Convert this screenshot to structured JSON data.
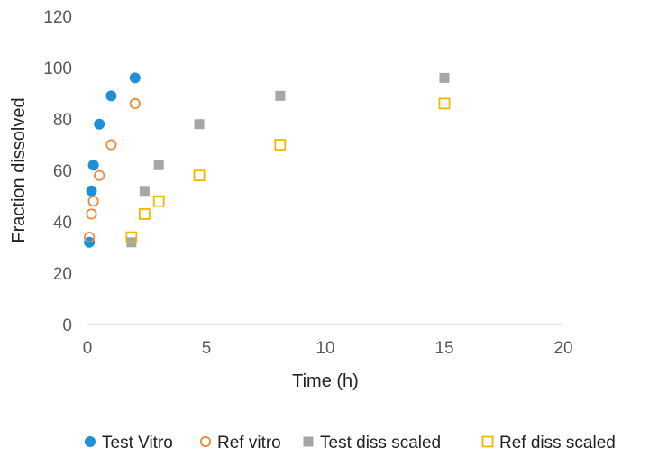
{
  "chart_data": {
    "type": "scatter",
    "title": "",
    "xlabel": "Time  (h)",
    "ylabel": "Fraction dissolved",
    "xlim": [
      0,
      20
    ],
    "ylim": [
      0,
      120
    ],
    "xticks": [
      0,
      5,
      10,
      15,
      20
    ],
    "yticks": [
      0,
      20,
      40,
      60,
      80,
      100,
      120
    ],
    "grid": false,
    "legend_position": "bottom",
    "series": [
      {
        "name": "Test Vitro",
        "marker": "filled-circle",
        "color": "#1f8fd6",
        "x": [
          0.08,
          0.17,
          0.25,
          0.5,
          1.0,
          2.0
        ],
        "y": [
          32,
          52,
          62,
          78,
          89,
          96
        ]
      },
      {
        "name": "Ref vitro",
        "marker": "open-circle",
        "color": "#f08a3c",
        "x": [
          0.08,
          0.17,
          0.25,
          0.5,
          1.0,
          2.0
        ],
        "y": [
          34,
          43,
          48,
          58,
          70,
          86
        ]
      },
      {
        "name": "Test diss scaled",
        "marker": "filled-square",
        "color": "#a6a6a6",
        "x": [
          1.85,
          2.4,
          3.0,
          4.7,
          8.1,
          15.0
        ],
        "y": [
          32,
          52,
          62,
          78,
          89,
          96
        ]
      },
      {
        "name": "Ref diss scaled",
        "marker": "open-square",
        "color": "#f5b400",
        "x": [
          1.85,
          2.4,
          3.0,
          4.7,
          8.1,
          15.0
        ],
        "y": [
          34,
          43,
          48,
          58,
          70,
          86
        ]
      }
    ]
  }
}
